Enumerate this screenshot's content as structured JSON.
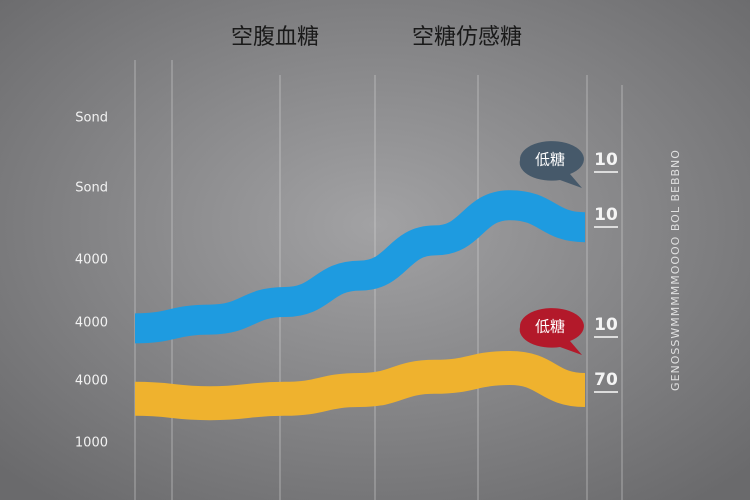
{
  "chart_data": {
    "type": "line",
    "titles": [
      "空腹血糖",
      "空糖仿感糖"
    ],
    "y_labels": [
      "Sond",
      "Sond",
      "4000",
      "4000",
      "4000",
      "1000"
    ],
    "categories": [
      null,
      null,
      null,
      null,
      null,
      null,
      null
    ],
    "ylim": [
      0,
      100
    ],
    "series": [
      {
        "color": "#1e9be0",
        "values": [
          39,
          41,
          45,
          51,
          59,
          67,
          62
        ]
      },
      {
        "color": "#efb22e",
        "values": [
          23,
          22,
          23,
          25,
          28,
          30,
          25
        ]
      }
    ],
    "callouts": [
      {
        "text": "低糖",
        "color": "#46596a"
      },
      {
        "text": "低糖",
        "color": "#b3192a"
      }
    ],
    "end_labels": [
      "10",
      "10",
      "10",
      "70"
    ],
    "side_text": "GENOSSWMMMMMOOOO BOL BEBBNO"
  }
}
